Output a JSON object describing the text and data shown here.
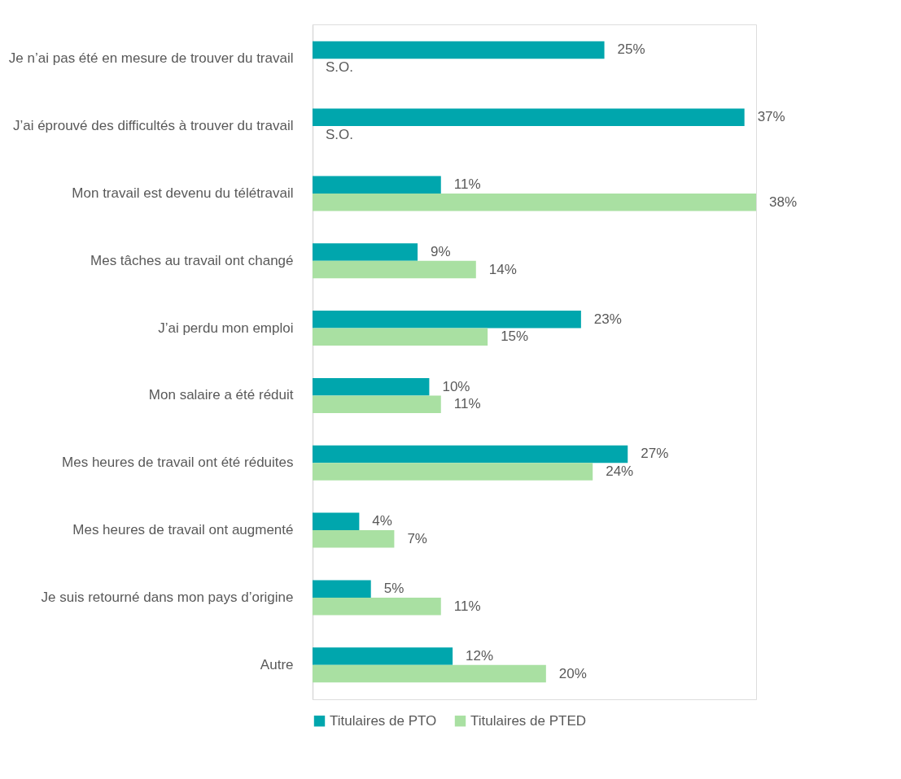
{
  "chart_data": {
    "type": "bar",
    "orientation": "horizontal",
    "categories": [
      "Je n’ai pas été en mesure de trouver du travail",
      "J’ai éprouvé des difficultés à trouver du travail",
      "Mon travail est devenu du télétravail",
      "Mes tâches au travail ont changé",
      "J’ai perdu mon emploi",
      "Mon salaire a été réduit",
      "Mes heures de travail ont été réduites",
      "Mes heures de travail ont augmenté",
      "Je suis retourné dans mon pays d’origine",
      "Autre"
    ],
    "series": [
      {
        "name": "Titulaires de PTO",
        "color": "#00a6ad",
        "values": [
          25,
          37,
          11,
          9,
          23,
          10,
          27,
          4,
          5,
          12
        ],
        "value_labels": [
          "25%",
          "37%",
          "11%",
          "9%",
          "23%",
          "10%",
          "27%",
          "4%",
          "5%",
          "12%"
        ]
      },
      {
        "name": "Titulaires de PTED",
        "color": "#a9e0a2",
        "values": [
          null,
          null,
          38,
          14,
          15,
          11,
          24,
          7,
          11,
          20
        ],
        "value_labels": [
          "S.O.",
          "S.O.",
          "38%",
          "14%",
          "15%",
          "11%",
          "24%",
          "7%",
          "11%",
          "20%"
        ]
      }
    ],
    "legend": "bottom",
    "grid": false
  }
}
